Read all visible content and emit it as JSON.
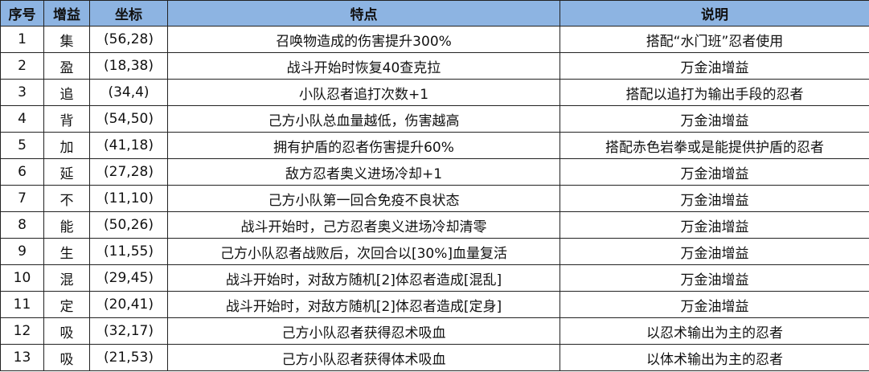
{
  "header": {
    "col_index": "序号",
    "col_buff": "增益",
    "col_coord": "坐标",
    "col_feature": "特点",
    "col_note": "说明"
  },
  "header_color": "#8db4e2",
  "rows": [
    {
      "index": "1",
      "buff": "集",
      "coord": "(56,28)",
      "feature": "召唤物造成的伤害提升300%",
      "note": "搭配“水门班”忍者使用"
    },
    {
      "index": "2",
      "buff": "盈",
      "coord": "(18,38)",
      "feature": "战斗开始时恢复40查克拉",
      "note": "万金油增益"
    },
    {
      "index": "3",
      "buff": "追",
      "coord": "(34,4)",
      "feature": "小队忍者追打次数+1",
      "note": "搭配以追打为输出手段的忍者"
    },
    {
      "index": "4",
      "buff": "背",
      "coord": "(54,50)",
      "feature": "己方小队总血量越低，伤害越高",
      "note": "万金油增益"
    },
    {
      "index": "5",
      "buff": "加",
      "coord": "(41,18)",
      "feature": "拥有护盾的忍者伤害提升60%",
      "note": "搭配赤色岩拳或是能提供护盾的忍者"
    },
    {
      "index": "6",
      "buff": "延",
      "coord": "(27,28)",
      "feature": "敌方忍者奥义进场冷却+1",
      "note": "万金油增益"
    },
    {
      "index": "7",
      "buff": "不",
      "coord": "(11,10)",
      "feature": "己方小队第一回合免疫不良状态",
      "note": "万金油增益"
    },
    {
      "index": "8",
      "buff": "能",
      "coord": "(50,26)",
      "feature": "战斗开始时，己方忍者奥义进场冷却清零",
      "note": "万金油增益"
    },
    {
      "index": "9",
      "buff": "生",
      "coord": "(11,55)",
      "feature": "己方小队忍者战败后，次回合以[30%]血量复活",
      "note": "万金油增益"
    },
    {
      "index": "10",
      "buff": "混",
      "coord": "(29,45)",
      "feature": "战斗开始时，对敌方随机[2]体忍者造成[混乱]",
      "note": "万金油增益"
    },
    {
      "index": "11",
      "buff": "定",
      "coord": "(20,41)",
      "feature": "战斗开始时，对敌方随机[2]体忍者造成[定身]",
      "note": "万金油增益"
    },
    {
      "index": "12",
      "buff": "吸",
      "coord": "(32,17)",
      "feature": "己方小队忍者获得忍术吸血",
      "note": "以忍术输出为主的忍者"
    },
    {
      "index": "13",
      "buff": "吸",
      "coord": "(21,53)",
      "feature": "己方小队忍者获得体术吸血",
      "note": "以体术输出为主的忍者"
    }
  ]
}
